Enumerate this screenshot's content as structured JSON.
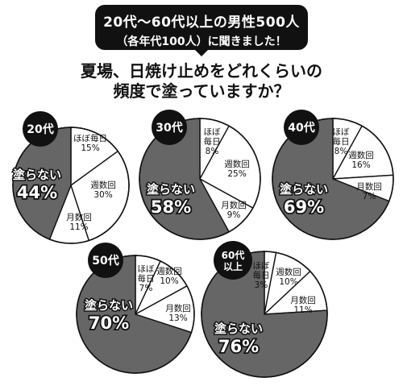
{
  "header": {
    "callout_line1": "20代〜60代以上の男性500人",
    "callout_line2": "（各年代100人）に聞きました！",
    "question_line1": "夏場、日焼け止めをどれくらいの",
    "question_line2": "頻度で塗っていますか？"
  },
  "colors": {
    "dark": "#666666",
    "light": "#ffffff",
    "badge": "#111111",
    "stroke": "#111111"
  },
  "chart_data": [
    {
      "type": "pie",
      "title": "20代",
      "slices": [
        {
          "label": "ほぼ毎日",
          "value": 15
        },
        {
          "label": "週数回",
          "value": 30
        },
        {
          "label": "月数回",
          "value": 11
        },
        {
          "label": "塗らない",
          "value": 44
        }
      ]
    },
    {
      "type": "pie",
      "title": "30代",
      "slices": [
        {
          "label": "ほぼ毎日",
          "value": 8
        },
        {
          "label": "週数回",
          "value": 25
        },
        {
          "label": "月数回",
          "value": 9
        },
        {
          "label": "塗らない",
          "value": 58
        }
      ]
    },
    {
      "type": "pie",
      "title": "40代",
      "slices": [
        {
          "label": "ほぼ毎日",
          "value": 8
        },
        {
          "label": "週数回",
          "value": 16
        },
        {
          "label": "月数回",
          "value": 7
        },
        {
          "label": "塗らない",
          "value": 69
        }
      ]
    },
    {
      "type": "pie",
      "title": "50代",
      "slices": [
        {
          "label": "ほぼ毎日",
          "value": 7
        },
        {
          "label": "週数回",
          "value": 10
        },
        {
          "label": "月数回",
          "value": 13
        },
        {
          "label": "塗らない",
          "value": 70
        }
      ]
    },
    {
      "type": "pie",
      "title": "60代以上",
      "slices": [
        {
          "label": "ほぼ毎日",
          "value": 3
        },
        {
          "label": "週数回",
          "value": 10
        },
        {
          "label": "月数回",
          "value": 11
        },
        {
          "label": "塗らない",
          "value": 76
        }
      ]
    }
  ]
}
